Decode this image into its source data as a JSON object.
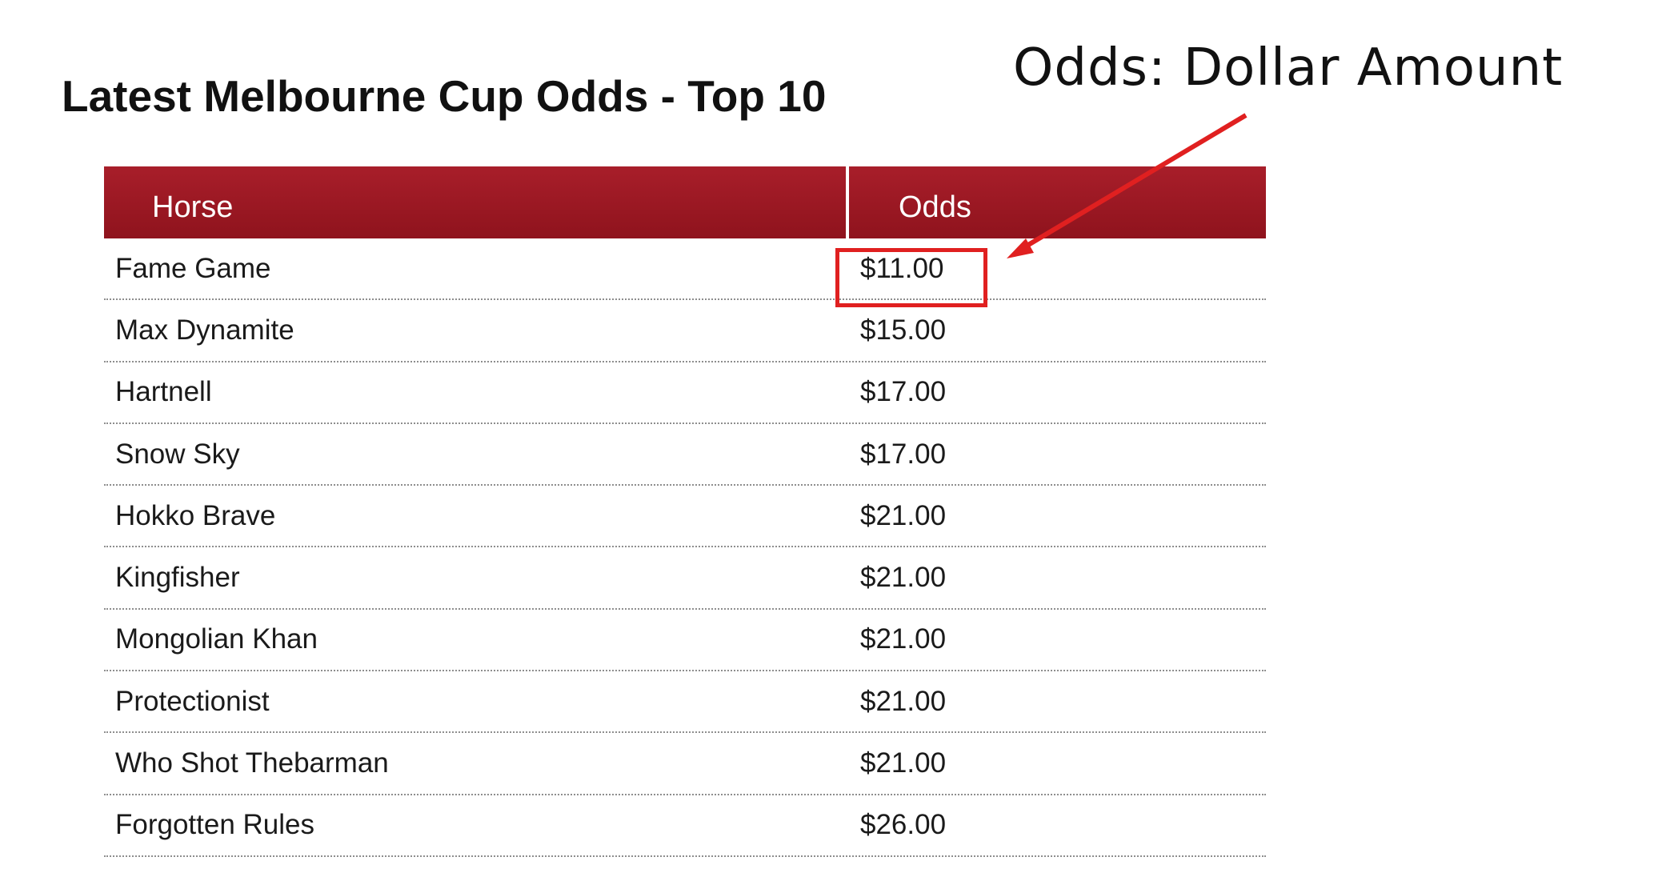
{
  "title": "Latest Melbourne Cup Odds - Top 10",
  "annotation": "Odds: Dollar  Amount",
  "table": {
    "headers": {
      "horse": "Horse",
      "odds": "Odds"
    },
    "rows": [
      {
        "horse": "Fame Game",
        "odds": "$11.00"
      },
      {
        "horse": "Max Dynamite",
        "odds": "$15.00"
      },
      {
        "horse": "Hartnell",
        "odds": "$17.00"
      },
      {
        "horse": "Snow Sky",
        "odds": "$17.00"
      },
      {
        "horse": "Hokko Brave",
        "odds": "$21.00"
      },
      {
        "horse": "Kingfisher",
        "odds": "$21.00"
      },
      {
        "horse": "Mongolian Khan",
        "odds": "$21.00"
      },
      {
        "horse": "Protectionist",
        "odds": "$21.00"
      },
      {
        "horse": "Who Shot Thebarman",
        "odds": "$21.00"
      },
      {
        "horse": "Forgotten Rules",
        "odds": "$26.00"
      }
    ]
  },
  "colors": {
    "header_bg": "#9c1922",
    "annotation_red": "#e02020"
  }
}
